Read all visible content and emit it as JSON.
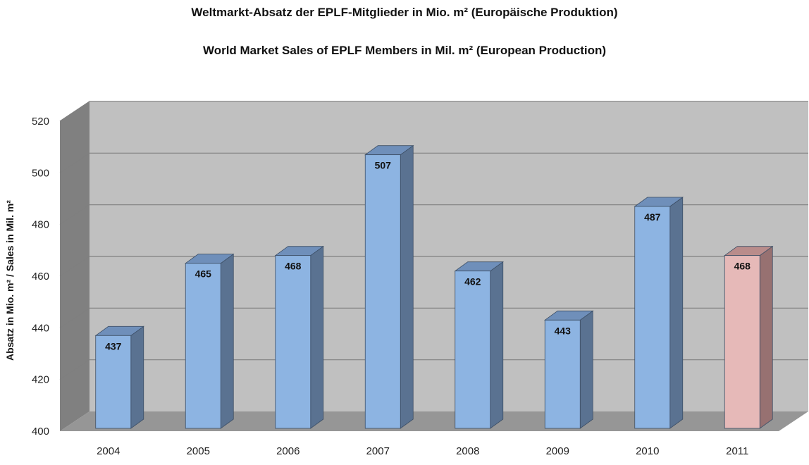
{
  "titles": {
    "line1": "Weltmarkt-Absatz der EPLF-Mitglieder in Mio. m² (Europäische Produktion)",
    "line2": "World Market Sales of EPLF Members in Mil.  m² (European Production)"
  },
  "chart_data": {
    "type": "bar",
    "title": "Weltmarkt-Absatz der EPLF-Mitglieder in Mio. m² (Europäische Produktion) / World Market Sales of EPLF Members in Mil.  m² (European Production)",
    "categories": [
      "2004",
      "2005",
      "2006",
      "2007",
      "2008",
      "2009",
      "2010",
      "2011"
    ],
    "values": [
      437,
      465,
      468,
      507,
      462,
      443,
      487,
      468
    ],
    "data_labels": [
      "437",
      "465",
      "468",
      "507",
      "462",
      "443",
      "487",
      "468"
    ],
    "xlabel": "",
    "ylabel": "Absatz in Mio. m² / Sales in Mil. m²",
    "ylim": [
      400,
      520
    ],
    "yticks": [
      400,
      420,
      440,
      460,
      480,
      500,
      520
    ],
    "grid": true,
    "style_3d": true,
    "colors": {
      "bar": "#8db4e2",
      "bar_side": "#5a7291",
      "bar_top": "#6f8fba",
      "highlight_bar": "#e6b9b8",
      "highlight_side": "#977171",
      "highlight_top": "#b98c8b",
      "wall": "#c0c0c0",
      "side_wall": "#808080",
      "floor": "#969696",
      "gridline": "#7f7f7f"
    },
    "highlight_category": "2011"
  }
}
